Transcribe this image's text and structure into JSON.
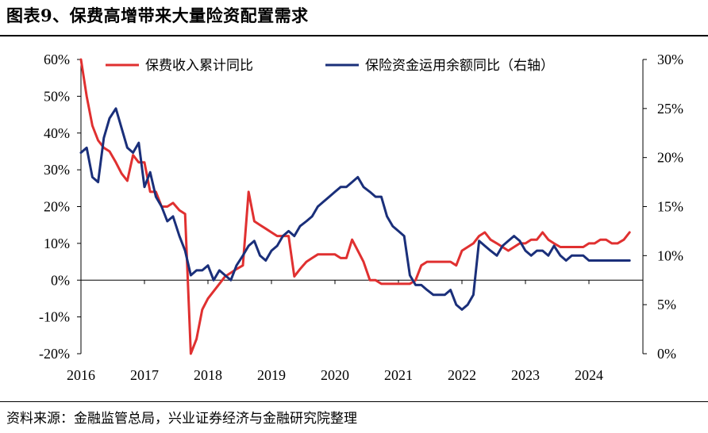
{
  "title": "图表9、保费高增带来大量险资配置需求",
  "source": "资料来源：金融监管总局，兴业证券经济与金融研究院整理",
  "chart_data": {
    "type": "line",
    "x_tick_labels": [
      "2016",
      "2017",
      "2018",
      "2019",
      "2020",
      "2021",
      "2022",
      "2023",
      "2024"
    ],
    "left_axis": {
      "ylim": [
        -20,
        60
      ],
      "tick_values": [
        -20,
        -10,
        0,
        10,
        20,
        30,
        40,
        50,
        60
      ],
      "tick_labels": [
        "-20%",
        "-10%",
        "0%",
        "10%",
        "20%",
        "30%",
        "40%",
        "50%",
        "60%"
      ]
    },
    "right_axis": {
      "ylim": [
        0,
        30
      ],
      "tick_values": [
        0,
        5,
        10,
        15,
        20,
        25,
        30
      ],
      "tick_labels": [
        "0%",
        "5%",
        "10%",
        "15%",
        "20%",
        "25%",
        "30%"
      ]
    },
    "legend_position": "top",
    "grid": false,
    "series": [
      {
        "name": "保费收入累计同比",
        "axis": "left",
        "color": "#e03030",
        "x": [
          2016.0,
          2016.09,
          2016.18,
          2016.27,
          2016.36,
          2016.45,
          2016.55,
          2016.64,
          2016.73,
          2016.82,
          2016.91,
          2017.0,
          2017.09,
          2017.18,
          2017.27,
          2017.36,
          2017.45,
          2017.55,
          2017.64,
          2017.73,
          2017.82,
          2017.91,
          2018.0,
          2018.09,
          2018.18,
          2018.27,
          2018.36,
          2018.45,
          2018.55,
          2018.64,
          2018.73,
          2018.82,
          2018.91,
          2019.0,
          2019.09,
          2019.18,
          2019.27,
          2019.36,
          2019.45,
          2019.55,
          2019.64,
          2019.73,
          2019.82,
          2019.91,
          2020.0,
          2020.09,
          2020.18,
          2020.27,
          2020.36,
          2020.45,
          2020.55,
          2020.64,
          2020.73,
          2020.82,
          2020.91,
          2021.0,
          2021.09,
          2021.18,
          2021.27,
          2021.36,
          2021.45,
          2021.55,
          2021.64,
          2021.73,
          2021.82,
          2021.91,
          2022.0,
          2022.09,
          2022.18,
          2022.27,
          2022.36,
          2022.45,
          2022.55,
          2022.64,
          2022.73,
          2022.82,
          2022.91,
          2023.0,
          2023.09,
          2023.18,
          2023.27,
          2023.36,
          2023.45,
          2023.55,
          2023.64,
          2023.73,
          2023.82,
          2023.91,
          2024.0,
          2024.09,
          2024.18,
          2024.27,
          2024.36,
          2024.45,
          2024.55,
          2024.64
        ],
        "values": [
          60,
          50,
          42,
          38,
          36,
          35,
          32,
          29,
          27,
          34,
          32,
          32,
          24,
          24,
          20,
          20,
          21,
          19,
          18,
          -20,
          -16,
          -8,
          -5,
          -3,
          -1,
          1,
          2,
          3,
          4,
          24,
          16,
          15,
          14,
          13,
          12,
          12,
          12,
          1,
          3,
          5,
          6,
          7,
          7,
          7,
          7,
          6,
          6,
          11,
          8,
          5,
          0,
          0,
          -1,
          -1,
          -1,
          -1,
          -1,
          -1,
          0,
          4,
          5,
          5,
          5,
          5,
          5,
          4,
          8,
          9,
          10,
          12,
          13,
          11,
          10,
          9,
          8,
          9,
          10,
          10,
          11,
          11,
          13,
          11,
          10,
          9,
          9,
          9,
          9,
          9,
          10,
          10,
          11,
          11,
          10,
          10,
          11,
          13
        ]
      },
      {
        "name": "保险资金运用余额同比（右轴）",
        "axis": "right",
        "color": "#1a2f7a",
        "x": [
          2016.0,
          2016.09,
          2016.18,
          2016.27,
          2016.36,
          2016.45,
          2016.55,
          2016.64,
          2016.73,
          2016.82,
          2016.91,
          2017.0,
          2017.09,
          2017.18,
          2017.27,
          2017.36,
          2017.45,
          2017.55,
          2017.64,
          2017.73,
          2017.82,
          2017.91,
          2018.0,
          2018.09,
          2018.18,
          2018.27,
          2018.36,
          2018.45,
          2018.55,
          2018.64,
          2018.73,
          2018.82,
          2018.91,
          2019.0,
          2019.09,
          2019.18,
          2019.27,
          2019.36,
          2019.45,
          2019.55,
          2019.64,
          2019.73,
          2019.82,
          2019.91,
          2020.0,
          2020.09,
          2020.18,
          2020.27,
          2020.36,
          2020.45,
          2020.55,
          2020.64,
          2020.73,
          2020.82,
          2020.91,
          2021.0,
          2021.09,
          2021.18,
          2021.27,
          2021.36,
          2021.45,
          2021.55,
          2021.64,
          2021.73,
          2021.82,
          2021.91,
          2022.0,
          2022.09,
          2022.18,
          2022.27,
          2022.36,
          2022.45,
          2022.55,
          2022.64,
          2022.73,
          2022.82,
          2022.91,
          2023.0,
          2023.09,
          2023.18,
          2023.27,
          2023.36,
          2023.45,
          2023.55,
          2023.64,
          2023.73,
          2023.82,
          2023.91,
          2024.0,
          2024.09,
          2024.18,
          2024.27,
          2024.36,
          2024.45,
          2024.55,
          2024.64
        ],
        "values": [
          20.5,
          21,
          18,
          17.5,
          22,
          24,
          25,
          23,
          21,
          20.5,
          21.5,
          17,
          18.5,
          16,
          15,
          13.5,
          14,
          12,
          10.5,
          8,
          8.5,
          8.5,
          9,
          7.5,
          8.5,
          8,
          7.5,
          9,
          10,
          11,
          11.5,
          10,
          9.5,
          10.5,
          11,
          12,
          12.5,
          12,
          13,
          13.5,
          14,
          15,
          15.5,
          16,
          16.5,
          17,
          17,
          17.5,
          18,
          17,
          16.5,
          16,
          16,
          14,
          13,
          12.5,
          12,
          8,
          7,
          7,
          6.5,
          6,
          6,
          6,
          6.5,
          5,
          4.5,
          5,
          6,
          11.5,
          11,
          10.5,
          10,
          11,
          11.5,
          12,
          11.5,
          10.5,
          10,
          10.5,
          10.5,
          10,
          11,
          10,
          9.5,
          10,
          10,
          10,
          9.5,
          9.5,
          9.5,
          9.5,
          9.5,
          9.5,
          9.5,
          9.5
        ]
      }
    ]
  }
}
